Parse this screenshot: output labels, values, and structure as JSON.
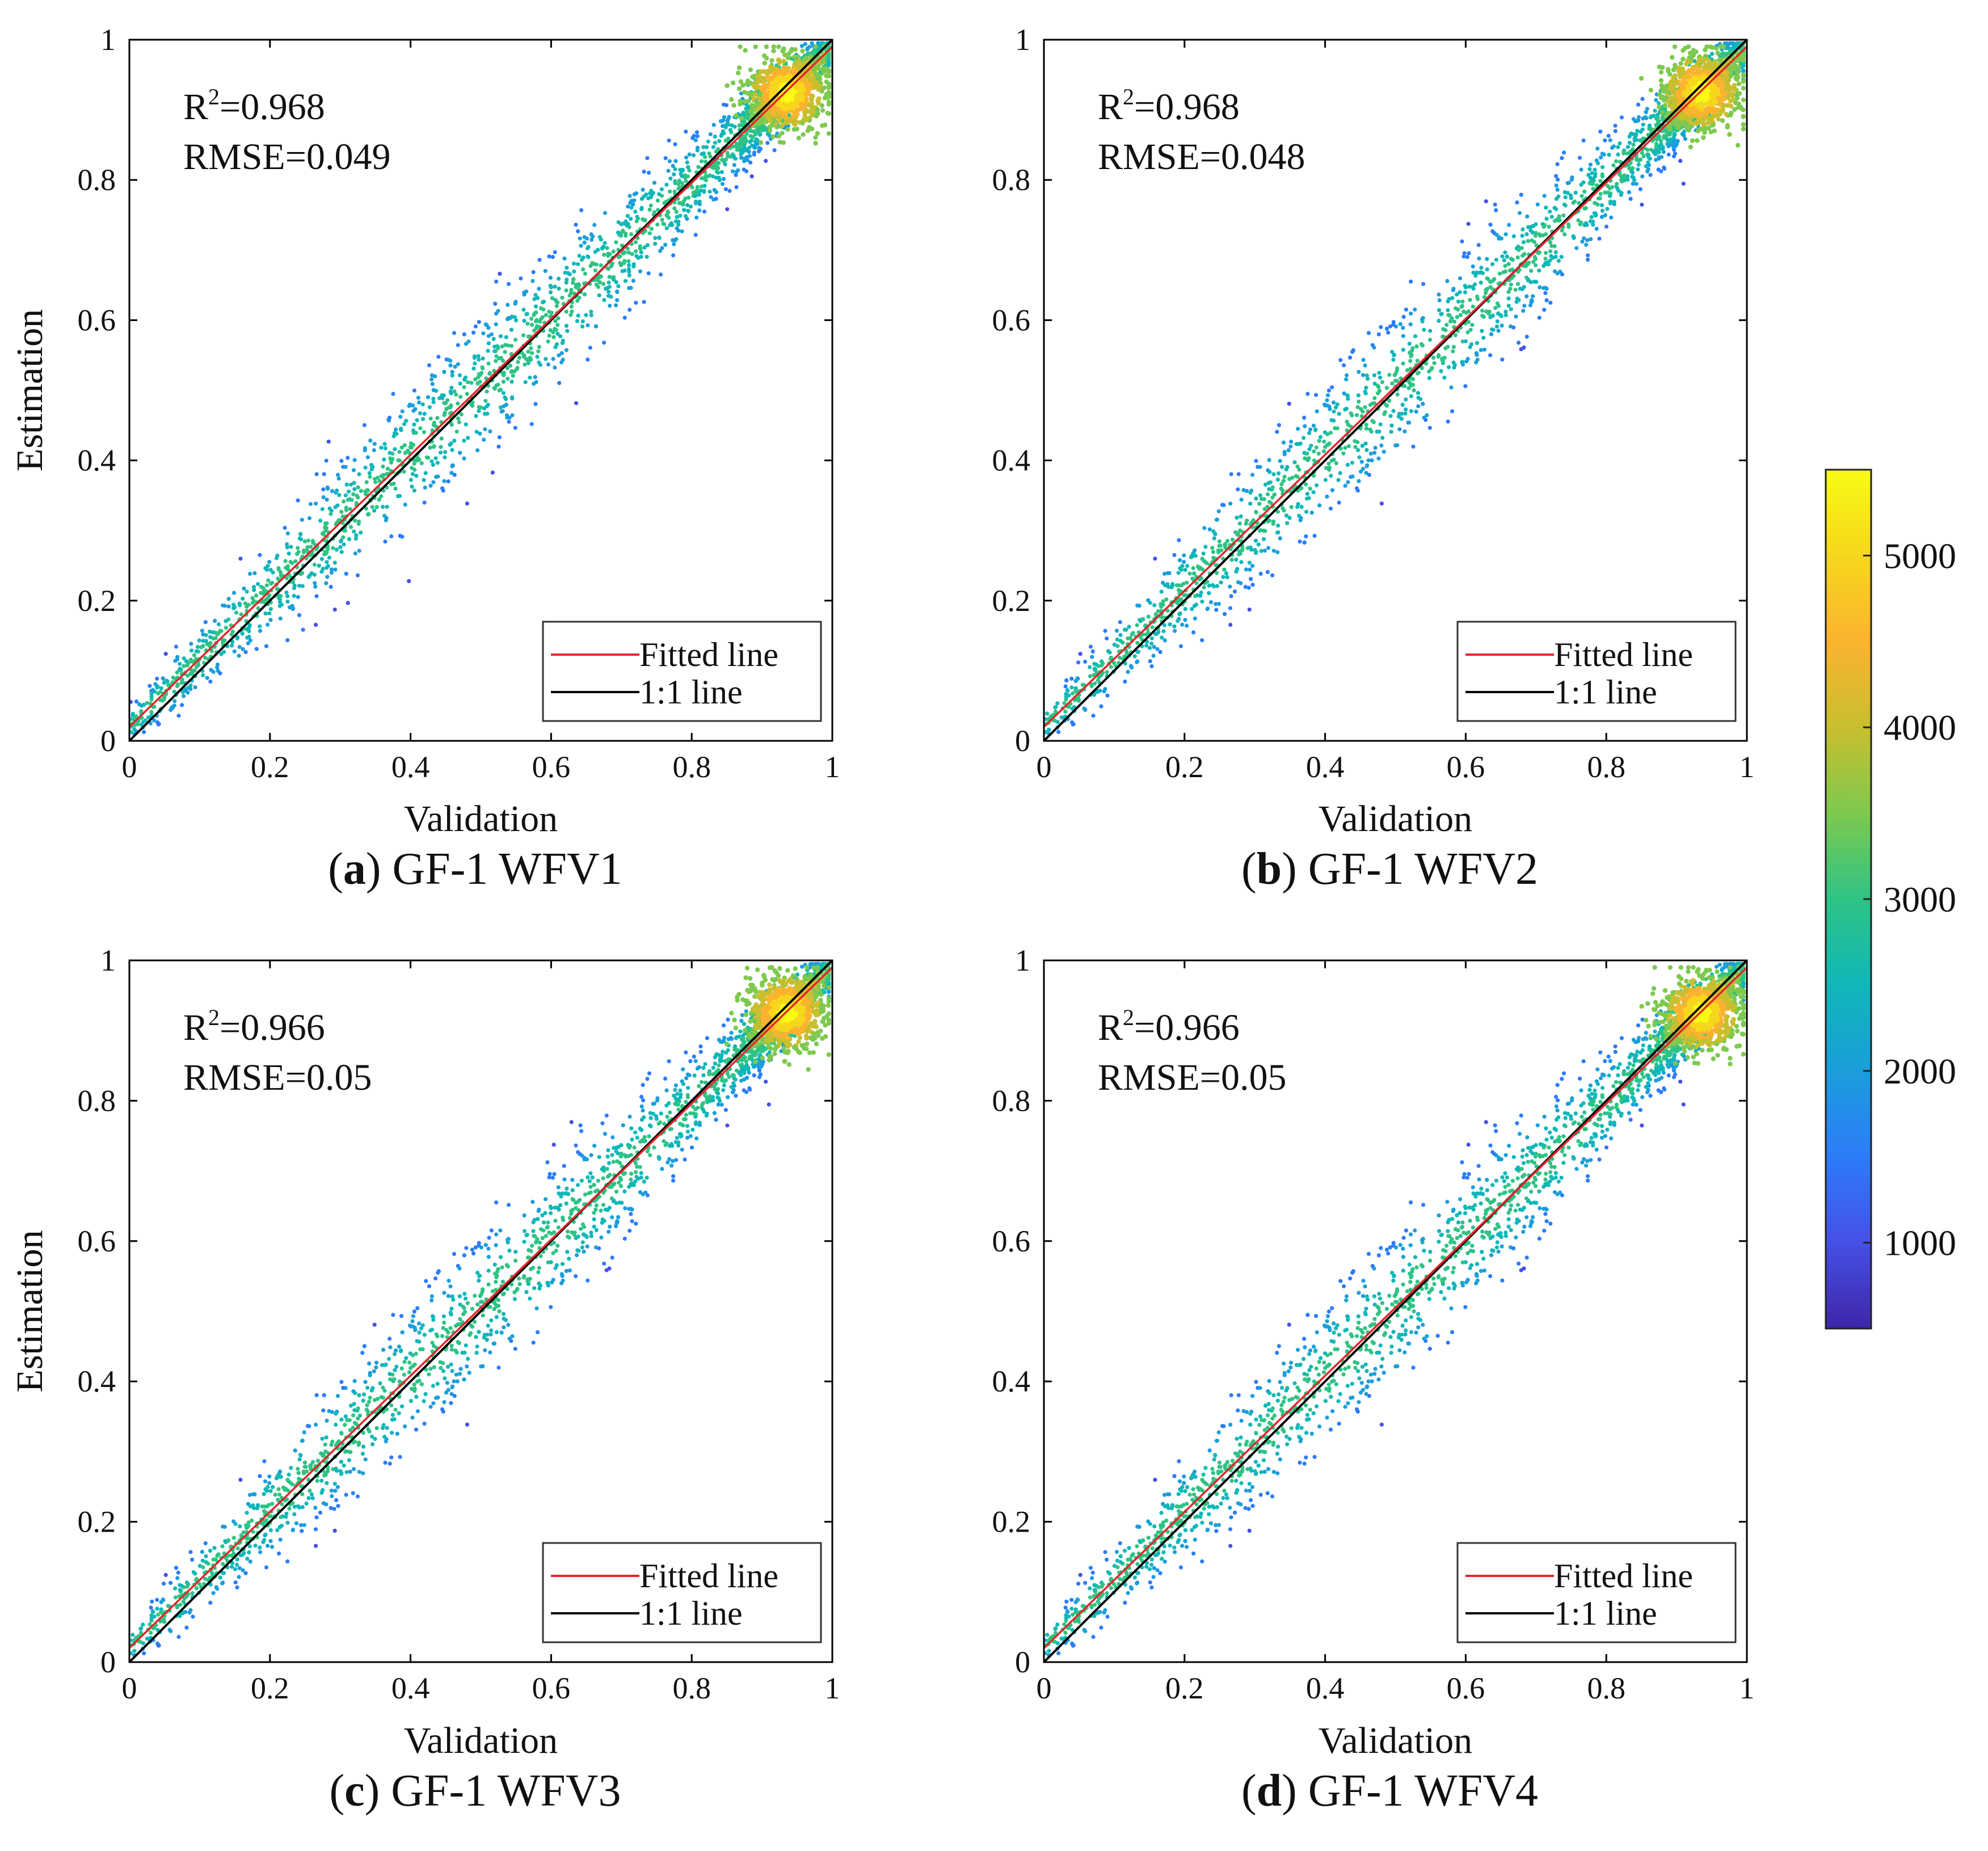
{
  "figure": {
    "colorbar": {
      "min": 500,
      "max": 5500,
      "ticks": [
        "1000",
        "2000",
        "3000",
        "4000",
        "5000"
      ],
      "colors": [
        "#3e26a8",
        "#4550e6",
        "#2d7cf9",
        "#1b9edb",
        "#10b7b8",
        "#2ec385",
        "#7ec94e",
        "#c8bf2f",
        "#fbb32f",
        "#f6d71c",
        "#f9fb15"
      ]
    },
    "line_colors": {
      "fitted": "#e3262a",
      "one_to_one": "#000000"
    }
  },
  "chart_data": [
    {
      "type": "scatter",
      "panel": "a",
      "caption_letter": "a",
      "caption_text": "GF-1 WFV1",
      "xlabel": "Validation",
      "ylabel": "Estimation",
      "xlim": [
        0,
        1
      ],
      "ylim": [
        0,
        1
      ],
      "xticks": [
        "0",
        "0.2",
        "0.4",
        "0.6",
        "0.8",
        "1"
      ],
      "yticks": [
        "0",
        "0.2",
        "0.4",
        "0.6",
        "0.8",
        "1"
      ],
      "r2_label": "R",
      "r2_value": "=0.968",
      "rmse_label": "RMSE=0.049",
      "legend": [
        "Fitted line",
        "1:1 line"
      ],
      "fitted_line": {
        "slope": 0.97,
        "intercept": 0.02
      },
      "one_to_one": [
        [
          0,
          0
        ],
        [
          1,
          1
        ]
      ]
    },
    {
      "type": "scatter",
      "panel": "b",
      "caption_letter": "b",
      "caption_text": "GF-1 WFV2",
      "xlabel": "Validation",
      "ylabel": "Estimation",
      "xlim": [
        0,
        1
      ],
      "ylim": [
        0,
        1
      ],
      "xticks": [
        "0",
        "0.2",
        "0.4",
        "0.6",
        "0.8",
        "1"
      ],
      "yticks": [
        "0",
        "0.2",
        "0.4",
        "0.6",
        "0.8",
        "1"
      ],
      "r2_label": "R",
      "r2_value": "=0.968",
      "rmse_label": "RMSE=0.048",
      "legend": [
        "Fitted line",
        "1:1 line"
      ],
      "fitted_line": {
        "slope": 0.97,
        "intercept": 0.02
      },
      "one_to_one": [
        [
          0,
          0
        ],
        [
          1,
          1
        ]
      ]
    },
    {
      "type": "scatter",
      "panel": "c",
      "caption_letter": "c",
      "caption_text": "GF-1 WFV3",
      "xlabel": "Validation",
      "ylabel": "Estimation",
      "xlim": [
        0,
        1
      ],
      "ylim": [
        0,
        1
      ],
      "xticks": [
        "0",
        "0.2",
        "0.4",
        "0.6",
        "0.8",
        "1"
      ],
      "yticks": [
        "0",
        "0.2",
        "0.4",
        "0.6",
        "0.8",
        "1"
      ],
      "r2_label": "R",
      "r2_value": "=0.966",
      "rmse_label": "RMSE=0.05",
      "legend": [
        "Fitted line",
        "1:1 line"
      ],
      "fitted_line": {
        "slope": 0.97,
        "intercept": 0.02
      },
      "one_to_one": [
        [
          0,
          0
        ],
        [
          1,
          1
        ]
      ]
    },
    {
      "type": "scatter",
      "panel": "d",
      "caption_letter": "d",
      "caption_text": "GF-1 WFV4",
      "xlabel": "Validation",
      "ylabel": "Estimation",
      "xlim": [
        0,
        1
      ],
      "ylim": [
        0,
        1
      ],
      "xticks": [
        "0",
        "0.2",
        "0.4",
        "0.6",
        "0.8",
        "1"
      ],
      "yticks": [
        "0",
        "0.2",
        "0.4",
        "0.6",
        "0.8",
        "1"
      ],
      "r2_label": "R",
      "r2_value": "=0.966",
      "rmse_label": "RMSE=0.05",
      "legend": [
        "Fitted line",
        "1:1 line"
      ],
      "fitted_line": {
        "slope": 0.97,
        "intercept": 0.02
      },
      "one_to_one": [
        [
          0,
          0
        ],
        [
          1,
          1
        ]
      ]
    }
  ]
}
